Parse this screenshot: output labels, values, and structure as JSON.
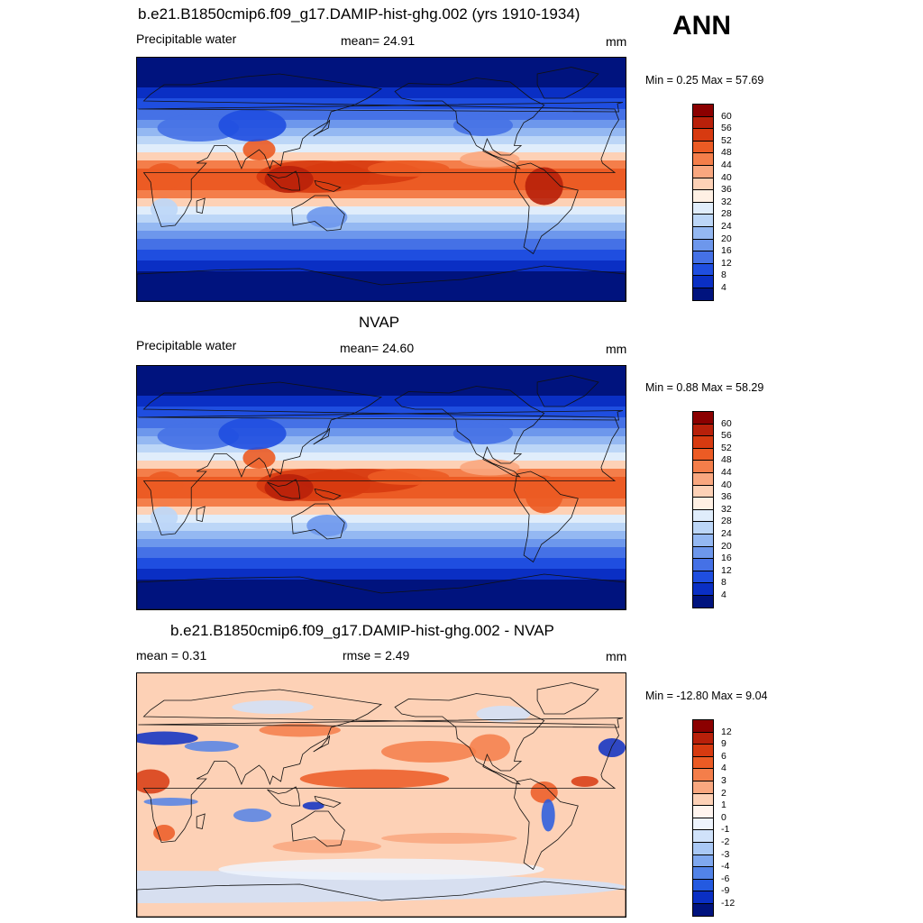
{
  "season": "ANN",
  "panels": [
    {
      "title": "b.e21.B1850cmip6.f09_g17.DAMIP-hist-ghg.002 (yrs 1910-1934)",
      "left_label": "Precipitable water",
      "center_label": "mean=  24.91",
      "units": "mm",
      "minmax": "Min =   0.25 Max =  57.69",
      "kind": "abs",
      "colorbar": {
        "labels": [
          "60",
          "56",
          "52",
          "48",
          "44",
          "40",
          "36",
          "32",
          "28",
          "24",
          "20",
          "16",
          "12",
          "8",
          "4"
        ],
        "colors": [
          "#8b0000",
          "#b8200a",
          "#d73a10",
          "#ec5b24",
          "#f47e4a",
          "#f9a77f",
          "#fdd1b6",
          "#fff0e4",
          "#e0edfb",
          "#bcd6f7",
          "#94b8f2",
          "#6d97ec",
          "#4571e6",
          "#1f4ee0",
          "#0a2fc4",
          "#00137e"
        ]
      }
    },
    {
      "title": "NVAP",
      "left_label": "Precipitable water",
      "center_label": "mean=  24.60",
      "units": "mm",
      "minmax": "Min =   0.88 Max =  58.29",
      "kind": "abs",
      "colorbar": {
        "labels": [
          "60",
          "56",
          "52",
          "48",
          "44",
          "40",
          "36",
          "32",
          "28",
          "24",
          "20",
          "16",
          "12",
          "8",
          "4"
        ],
        "colors": [
          "#8b0000",
          "#b8200a",
          "#d73a10",
          "#ec5b24",
          "#f47e4a",
          "#f9a77f",
          "#fdd1b6",
          "#fff0e4",
          "#e0edfb",
          "#bcd6f7",
          "#94b8f2",
          "#6d97ec",
          "#4571e6",
          "#1f4ee0",
          "#0a2fc4",
          "#00137e"
        ]
      }
    },
    {
      "title": "b.e21.B1850cmip6.f09_g17.DAMIP-hist-ghg.002 - NVAP",
      "left_label": "mean =   0.31",
      "center_label": "rmse =   2.49",
      "units": "mm",
      "minmax": "Min = -12.80 Max =   9.04",
      "kind": "diff",
      "colorbar": {
        "labels": [
          "12",
          "9",
          "6",
          "4",
          "3",
          "2",
          "1",
          "0",
          "-1",
          "-2",
          "-3",
          "-4",
          "-6",
          "-9",
          "-12"
        ],
        "colors": [
          "#8b0000",
          "#b8200a",
          "#d73a10",
          "#ec5b24",
          "#f47e4a",
          "#f9a77f",
          "#fdd1b6",
          "#fff4ee",
          "#eef4fd",
          "#d0e2fa",
          "#a9c8f5",
          "#7fa8ef",
          "#5283e8",
          "#245ae0",
          "#0a2fc4",
          "#00137e"
        ]
      }
    }
  ]
}
